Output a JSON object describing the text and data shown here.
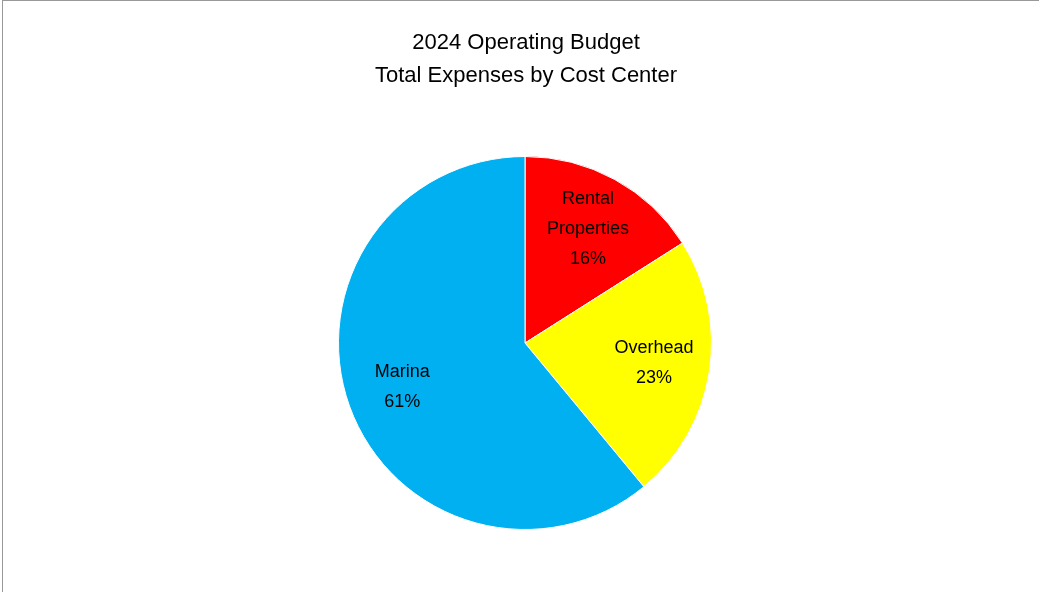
{
  "chart_data": {
    "type": "pie",
    "title": "2024 Operating Budget",
    "subtitle": "Total Expenses by Cost Center",
    "categories": [
      "Rental Properties",
      "Overhead",
      "Marina"
    ],
    "values": [
      16,
      23,
      61
    ],
    "colors": [
      "#ff0000",
      "#ffff00",
      "#00b0f0"
    ],
    "value_labels": [
      "16%",
      "23%",
      "61%"
    ],
    "legend": false
  }
}
